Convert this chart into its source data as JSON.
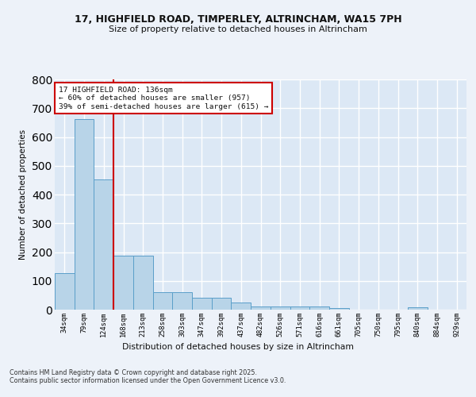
{
  "title_line1": "17, HIGHFIELD ROAD, TIMPERLEY, ALTRINCHAM, WA15 7PH",
  "title_line2": "Size of property relative to detached houses in Altrincham",
  "xlabel": "Distribution of detached houses by size in Altrincham",
  "ylabel": "Number of detached properties",
  "bar_values": [
    128,
    663,
    453,
    188,
    188,
    62,
    62,
    42,
    42,
    25,
    12,
    12,
    10,
    10,
    5,
    0,
    0,
    0,
    7,
    0,
    0
  ],
  "categories": [
    "34sqm",
    "79sqm",
    "124sqm",
    "168sqm",
    "213sqm",
    "258sqm",
    "303sqm",
    "347sqm",
    "392sqm",
    "437sqm",
    "482sqm",
    "526sqm",
    "571sqm",
    "616sqm",
    "661sqm",
    "705sqm",
    "750sqm",
    "795sqm",
    "840sqm",
    "884sqm",
    "929sqm"
  ],
  "bar_color": "#b8d4e8",
  "bar_edge_color": "#5a9fc9",
  "ylim": [
    0,
    800
  ],
  "yticks": [
    0,
    100,
    200,
    300,
    400,
    500,
    600,
    700,
    800
  ],
  "vline_x_index": 2,
  "vline_color": "#cc0000",
  "annotation_text": "17 HIGHFIELD ROAD: 136sqm\n← 60% of detached houses are smaller (957)\n39% of semi-detached houses are larger (615) →",
  "annotation_box_color": "#cc0000",
  "background_color": "#dce8f5",
  "grid_color": "#ffffff",
  "fig_bg_color": "#edf2f9",
  "footer": "Contains HM Land Registry data © Crown copyright and database right 2025.\nContains public sector information licensed under the Open Government Licence v3.0."
}
